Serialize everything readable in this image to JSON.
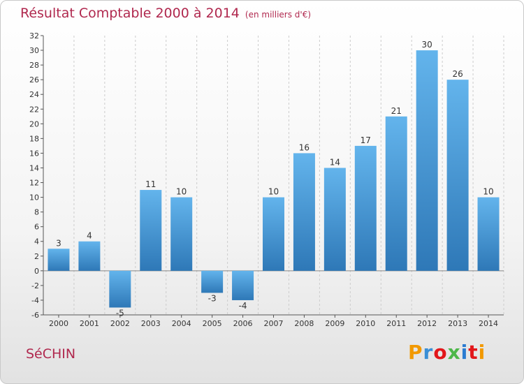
{
  "title": {
    "main": "Résultat Comptable 2000 à 2014",
    "unit": "(en milliers d'€)"
  },
  "commune": "SéCHIN",
  "logo": {
    "letters": [
      "P",
      "r",
      "o",
      "x",
      "i",
      "t",
      "i"
    ],
    "colors": [
      "#f29900",
      "#3a8fd6",
      "#e2171b",
      "#4cb748",
      "#2a7bd1",
      "#e2171b",
      "#f29900"
    ]
  },
  "colors": {
    "bar_top": "#63b4ec",
    "bar_bottom": "#2e78b7",
    "title": "#b0284e",
    "grid": "#cccccc"
  },
  "chart_data": {
    "type": "bar",
    "title": "Résultat Comptable 2000 à 2014",
    "categories": [
      "2000",
      "2001",
      "2002",
      "2003",
      "2004",
      "2005",
      "2006",
      "2007",
      "2008",
      "2009",
      "2010",
      "2011",
      "2012",
      "2013",
      "2014"
    ],
    "values": [
      3,
      4,
      -5,
      11,
      10,
      -3,
      -4,
      10,
      16,
      14,
      17,
      21,
      30,
      26,
      10
    ],
    "ylim": [
      -6,
      32
    ],
    "yticks": [
      -6,
      -4,
      -2,
      0,
      2,
      4,
      6,
      8,
      10,
      12,
      14,
      16,
      18,
      20,
      22,
      24,
      26,
      28,
      30,
      32
    ],
    "grid": "vertical dashed",
    "legend": "none"
  }
}
